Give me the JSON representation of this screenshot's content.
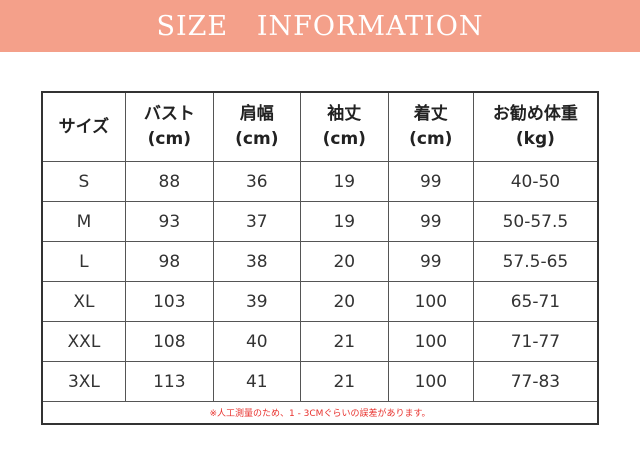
{
  "banner": {
    "title": "SIZE   INFORMATION",
    "color": "#F4A08A"
  },
  "table": {
    "headers": [
      [
        "サイズ",
        ""
      ],
      [
        "バスト",
        "(cm)"
      ],
      [
        "肩幅",
        "(cm)"
      ],
      [
        "袖丈",
        "(cm)"
      ],
      [
        "着丈",
        "(cm)"
      ],
      [
        "お勧め体重",
        "(kg)"
      ]
    ],
    "rows": [
      [
        "S",
        "88",
        "36",
        "19",
        "99",
        "40-50"
      ],
      [
        "M",
        "93",
        "37",
        "19",
        "99",
        "50-57.5"
      ],
      [
        "L",
        "98",
        "38",
        "20",
        "99",
        "57.5-65"
      ],
      [
        "XL",
        "103",
        "39",
        "20",
        "100",
        "65-71"
      ],
      [
        "XXL",
        "108",
        "40",
        "21",
        "100",
        "71-77"
      ],
      [
        "3XL",
        "113",
        "41",
        "21",
        "100",
        "77-83"
      ]
    ],
    "note": "※人工測量のため、1 - 3CMぐらいの誤差があります。"
  }
}
